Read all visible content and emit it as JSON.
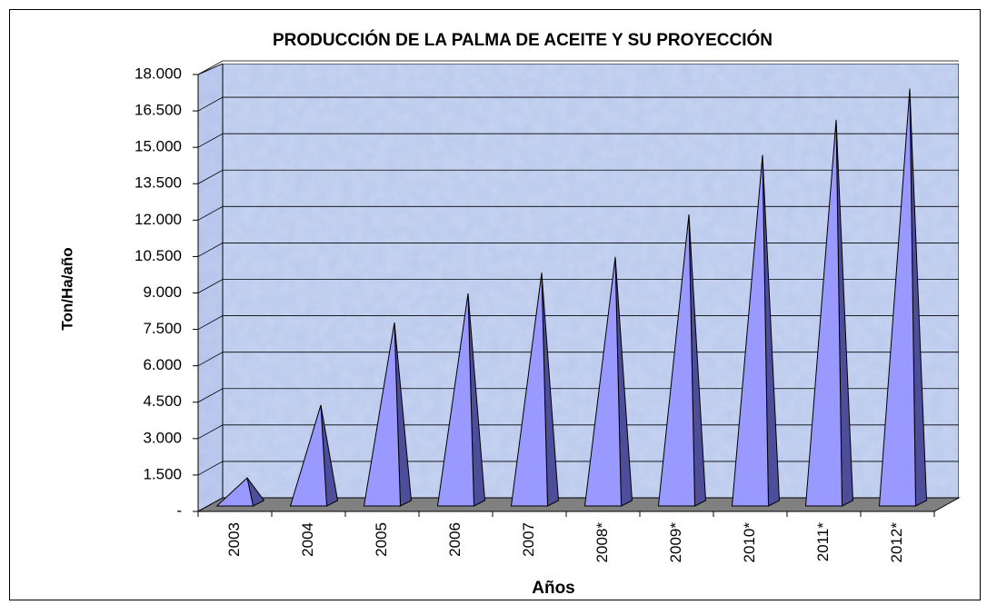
{
  "chart_data": {
    "type": "pyramid3d",
    "title": "PRODUCCIÓN DE LA PALMA DE ACEITE Y SU PROYECCIÓN",
    "x_label": "Años",
    "y_label": "Ton/Ha/año",
    "categories": [
      "2003",
      "2004",
      "2005",
      "2006",
      "2007",
      "2008*",
      "2009*",
      "2010*",
      "2011*",
      "2012*"
    ],
    "values": [
      1100,
      4100,
      7500,
      8700,
      9550,
      10200,
      11950,
      14400,
      15850,
      17130
    ],
    "color": "#9999ff",
    "side_color": "#4d4d99",
    "ylim": [
      0,
      18000
    ],
    "yticks": [
      {
        "value": 0,
        "label": "-"
      },
      {
        "value": 1500,
        "label": "1.500"
      },
      {
        "value": 3000,
        "label": "3.000"
      },
      {
        "value": 4500,
        "label": "4.500"
      },
      {
        "value": 6000,
        "label": "6.000"
      },
      {
        "value": 7500,
        "label": "7.500"
      },
      {
        "value": 9000,
        "label": "9.000"
      },
      {
        "value": 10500,
        "label": "10.500"
      },
      {
        "value": 12000,
        "label": "12.000"
      },
      {
        "value": 13500,
        "label": "13.500"
      },
      {
        "value": 15000,
        "label": "15.000"
      },
      {
        "value": 16500,
        "label": "16.500"
      },
      {
        "value": 18000,
        "label": "18.000"
      }
    ],
    "grid": true
  }
}
